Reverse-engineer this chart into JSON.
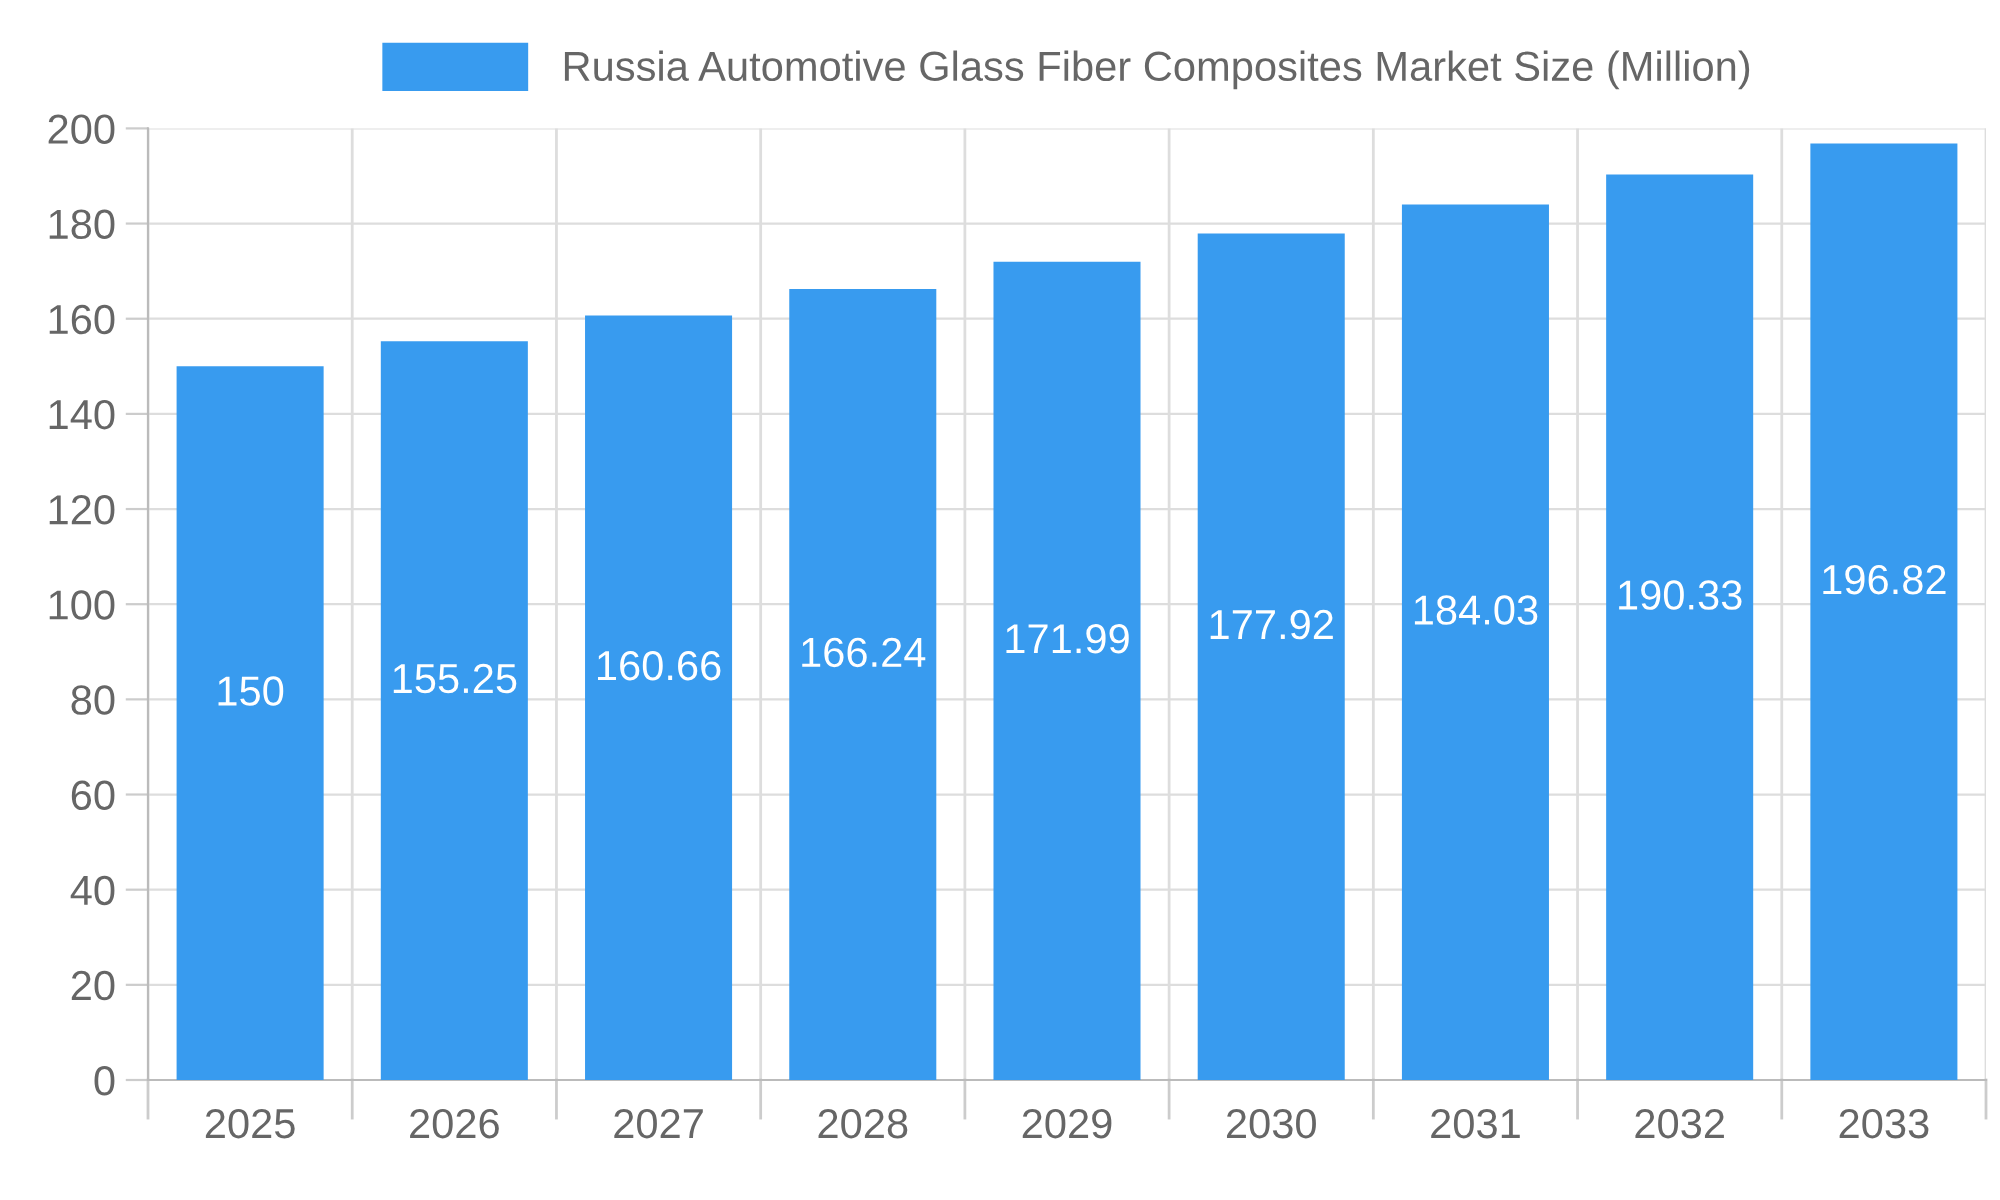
{
  "chart_data": {
    "type": "bar",
    "categories": [
      "2025",
      "2026",
      "2027",
      "2028",
      "2029",
      "2030",
      "2031",
      "2032",
      "2033"
    ],
    "series": [
      {
        "name": "Russia Automotive Glass Fiber Composites Market Size (Million)",
        "color": "#389bef",
        "values": [
          150,
          155.25,
          160.66,
          166.24,
          171.99,
          177.92,
          184.03,
          190.33,
          196.82
        ]
      }
    ],
    "ylim": [
      0,
      200
    ],
    "yticks": [
      0,
      20,
      40,
      60,
      80,
      100,
      120,
      140,
      160,
      180,
      200
    ],
    "grid": true,
    "legend": "top",
    "data_labels": true
  }
}
